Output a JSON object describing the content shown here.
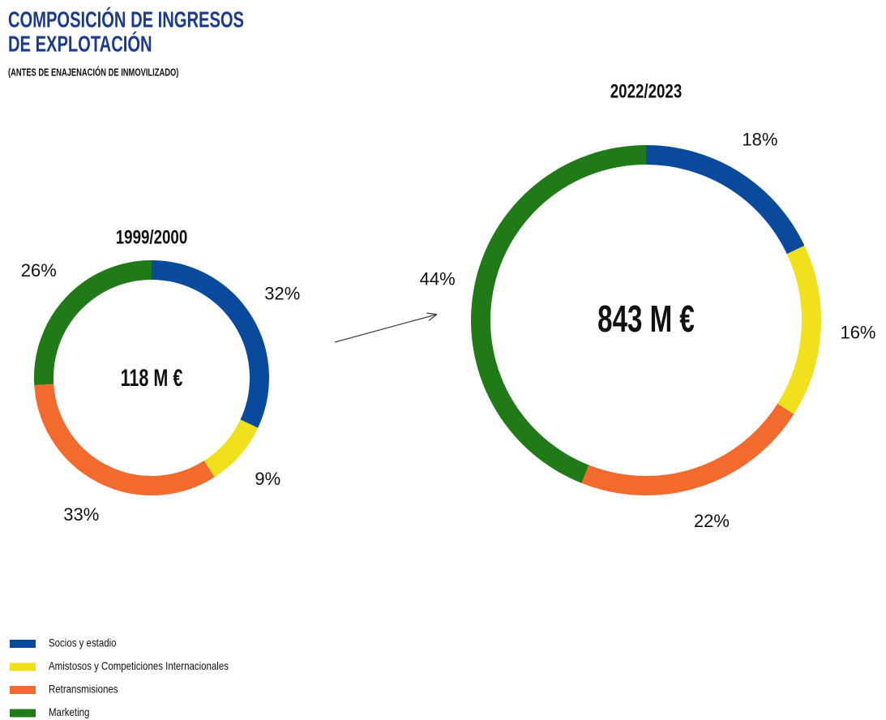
{
  "header": {
    "title_lines": [
      "COMPOSICIÓN DE INGRESOS",
      "DE EXPLOTACIÓN"
    ],
    "subtitle": "(ANTES DE ENAJENACIÓN DE INMOVILIZADO)"
  },
  "chart_data": [
    {
      "type": "donut",
      "title": "1999/2000",
      "center_label": "118 M €",
      "categories": [
        "Socios y estadio",
        "Amistosos y Competiciones Internacionales",
        "Retransmisiones",
        "Marketing"
      ],
      "colors": [
        "#0a4a9c",
        "#f0e01e",
        "#f26a2e",
        "#207a17"
      ],
      "values": [
        32,
        9,
        33,
        26
      ],
      "value_labels": [
        "32%",
        "9%",
        "33%",
        "26%"
      ]
    },
    {
      "type": "donut",
      "title": "2022/2023",
      "center_label": "843 M €",
      "categories": [
        "Socios y estadio",
        "Amistosos y Competiciones Internacionales",
        "Retransmisiones",
        "Marketing"
      ],
      "colors": [
        "#0a4a9c",
        "#f0e01e",
        "#f26a2e",
        "#207a17"
      ],
      "values": [
        18,
        16,
        22,
        44
      ],
      "value_labels": [
        "18%",
        "16%",
        "22%",
        "44%"
      ]
    }
  ]
}
